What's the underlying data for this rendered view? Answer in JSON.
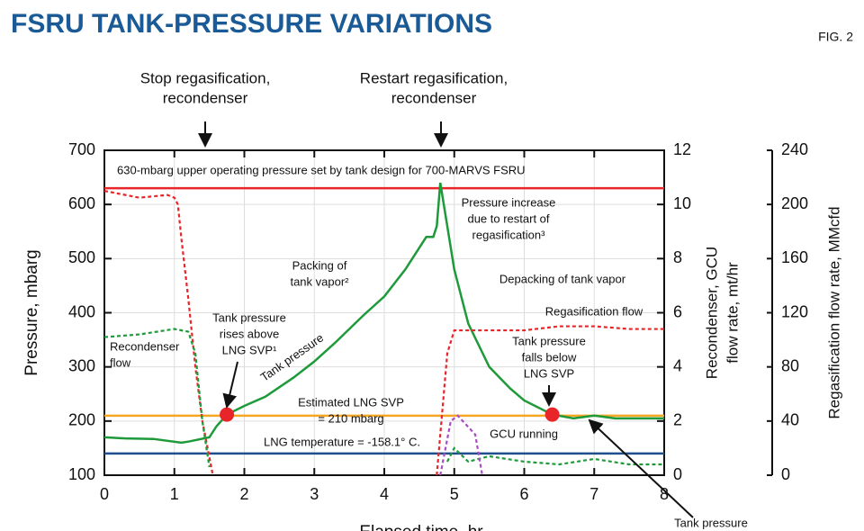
{
  "chart_data": {
    "type": "line",
    "title": "FSRU TANK-PRESSURE VARIATIONS",
    "figure_label": "FIG. 2",
    "x_label": "Elapsed time, hr",
    "y_label": "Pressure, mbarg",
    "y2_label": [
      "Recondenser, GCU",
      "flow rate, mt/hr"
    ],
    "y3_label": "Regasification flow rate, MMcfd",
    "xlim": [
      0,
      8
    ],
    "xticks": [
      0,
      1,
      2,
      3,
      4,
      5,
      6,
      7,
      8
    ],
    "ylim": [
      100,
      700
    ],
    "yticks": [
      100,
      200,
      300,
      400,
      500,
      600,
      700
    ],
    "y2lim": [
      0,
      12
    ],
    "y2ticks": [
      0,
      2,
      4,
      6,
      8,
      10,
      12
    ],
    "y3lim": [
      0,
      240
    ],
    "y3ticks": [
      0,
      40,
      80,
      120,
      160,
      200,
      240
    ],
    "grid": true,
    "series": [
      {
        "color": "#1e9a3a",
        "style": "solid",
        "axis": "y",
        "x": [
          0,
          0.3,
          0.7,
          1.1,
          1.2,
          1.5,
          1.6,
          1.75,
          2,
          2.3,
          2.7,
          3,
          3.3,
          3.7,
          4,
          4.3,
          4.5,
          4.6,
          4.7,
          4.75,
          4.8,
          4.85,
          4.9,
          5,
          5.2,
          5.5,
          5.8,
          6,
          6.4,
          6.7,
          7,
          7.3,
          7.6,
          8
        ],
        "values": [
          170,
          168,
          167,
          160,
          162,
          170,
          190,
          212,
          228,
          245,
          280,
          310,
          345,
          395,
          430,
          480,
          520,
          540,
          540,
          560,
          640,
          600,
          560,
          480,
          380,
          300,
          260,
          238,
          212,
          205,
          210,
          205,
          205,
          205
        ]
      },
      {
        "color": "#e8262a",
        "style": "dotted",
        "axis": "y3",
        "x": [
          0,
          0.5,
          0.9,
          1,
          1.05,
          1.1,
          1.2,
          1.3,
          1.4,
          1.55
        ],
        "values": [
          210,
          205,
          207,
          205,
          200,
          175,
          130,
          80,
          40,
          0
        ]
      },
      {
        "color": "#e8262a",
        "style": "dotted",
        "axis": "y3",
        "x": [
          4.75,
          4.85,
          4.9,
          5,
          5.5,
          6,
          6.5,
          7,
          7.5,
          8
        ],
        "values": [
          0,
          60,
          90,
          107,
          107,
          107,
          110,
          110,
          108,
          108
        ]
      },
      {
        "color": "#1e9a3a",
        "style": "dotted",
        "axis": "y2",
        "x": [
          0,
          0.5,
          1,
          1.2,
          1.3,
          1.4,
          1.5
        ],
        "values": [
          5.1,
          5.2,
          5.4,
          5.3,
          4.5,
          2,
          0.3
        ]
      },
      {
        "color": "#1e9a3a",
        "style": "dotted",
        "axis": "y2",
        "x": [
          4.9,
          5,
          5.2,
          5.5,
          6,
          6.5,
          7,
          7.5,
          8
        ],
        "values": [
          0.5,
          1,
          0.5,
          0.7,
          0.5,
          0.4,
          0.6,
          0.4,
          0.4
        ]
      },
      {
        "color": "#a64ec2",
        "style": "dotted",
        "axis": "y2",
        "x": [
          4.8,
          4.95,
          5.05,
          5.3,
          5.4
        ],
        "values": [
          0,
          2,
          2.2,
          1.5,
          0
        ]
      }
    ],
    "reference_lines": [
      {
        "value": 630,
        "color": "#e8262a"
      },
      {
        "value": 210,
        "color": "#f5a623"
      },
      {
        "value": 140,
        "color": "#1f4e8c"
      }
    ],
    "markers": {
      "x": [
        1.75,
        6.4
      ],
      "values": [
        212,
        212
      ],
      "color": "#e8262a"
    },
    "annotations": [
      [
        "Stop regasification,",
        "recondenser"
      ],
      [
        "Restart regasification,",
        "recondenser"
      ],
      [
        "630-mbarg upper operating pressure set by tank design for 700-MARVS FSRU"
      ],
      [
        "Pressure increase",
        "due to restart of",
        "regasification³"
      ],
      [
        "Packing of",
        "tank vapor²"
      ],
      [
        "Depacking of tank vapor"
      ],
      [
        "Regasification flow"
      ],
      [
        "Tank pressure",
        "rises above",
        "LNG SVP¹"
      ],
      [
        "Recondenser",
        "flow"
      ],
      [
        "Tank pressure",
        "falls below",
        "LNG SVP"
      ],
      [
        "Tank pressure"
      ],
      [
        "Estimated LNG SVP",
        "= 210 mbarg"
      ],
      [
        "LNG temperature = -158.1° C."
      ],
      [
        "GCU running"
      ],
      [
        "Tank pressure"
      ]
    ]
  }
}
